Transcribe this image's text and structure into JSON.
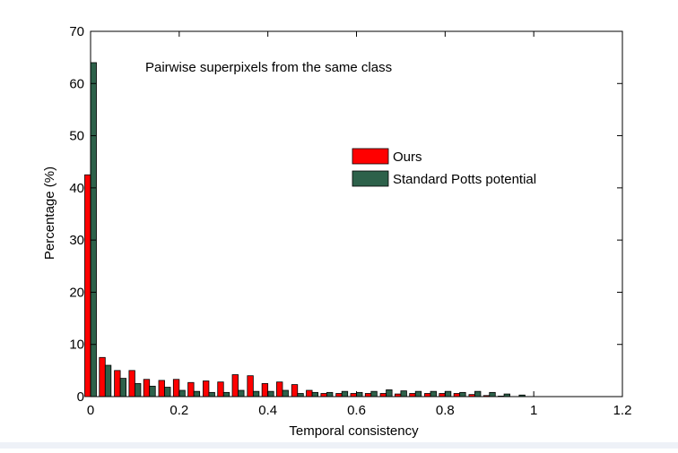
{
  "chart_data": {
    "type": "bar",
    "annotation": "Pairwise superpixels from the same class",
    "xlabel": "Temporal consistency",
    "ylabel": "Percentage (%)",
    "xlim": [
      0,
      1.2
    ],
    "ylim": [
      0,
      70
    ],
    "xticks": [
      "0",
      "0.2",
      "0.4",
      "0.6",
      "0.8",
      "1",
      "1.2"
    ],
    "yticks": [
      "0",
      "10",
      "20",
      "30",
      "40",
      "50",
      "60",
      "70"
    ],
    "grid": false,
    "legend_position": "center-right",
    "bin_width": 0.033,
    "bin_centers": [
      0,
      0.033,
      0.067,
      0.1,
      0.133,
      0.167,
      0.2,
      0.233,
      0.267,
      0.3,
      0.333,
      0.367,
      0.4,
      0.433,
      0.467,
      0.5,
      0.533,
      0.567,
      0.6,
      0.633,
      0.667,
      0.7,
      0.733,
      0.767,
      0.8,
      0.833,
      0.867,
      0.9,
      0.933,
      0.967
    ],
    "series": [
      {
        "name": "Ours",
        "color": "#ff0000",
        "values": [
          42.5,
          7.5,
          5.0,
          5.0,
          3.3,
          3.1,
          3.3,
          2.7,
          3.0,
          2.8,
          4.2,
          4.0,
          2.5,
          2.8,
          2.3,
          1.2,
          0.6,
          0.6,
          0.6,
          0.6,
          0.6,
          0.5,
          0.6,
          0.6,
          0.6,
          0.6,
          0.4,
          0.2,
          0.1,
          0.0
        ]
      },
      {
        "name": "Standard Potts potential",
        "color": "#2d614a",
        "values": [
          64.0,
          6.0,
          3.5,
          2.5,
          2.0,
          1.8,
          1.2,
          1.0,
          0.8,
          0.8,
          1.2,
          1.0,
          1.0,
          1.2,
          0.6,
          0.8,
          0.8,
          1.0,
          0.8,
          1.0,
          1.3,
          1.1,
          1.0,
          1.0,
          1.0,
          0.8,
          1.0,
          0.8,
          0.5,
          0.3
        ]
      }
    ]
  }
}
